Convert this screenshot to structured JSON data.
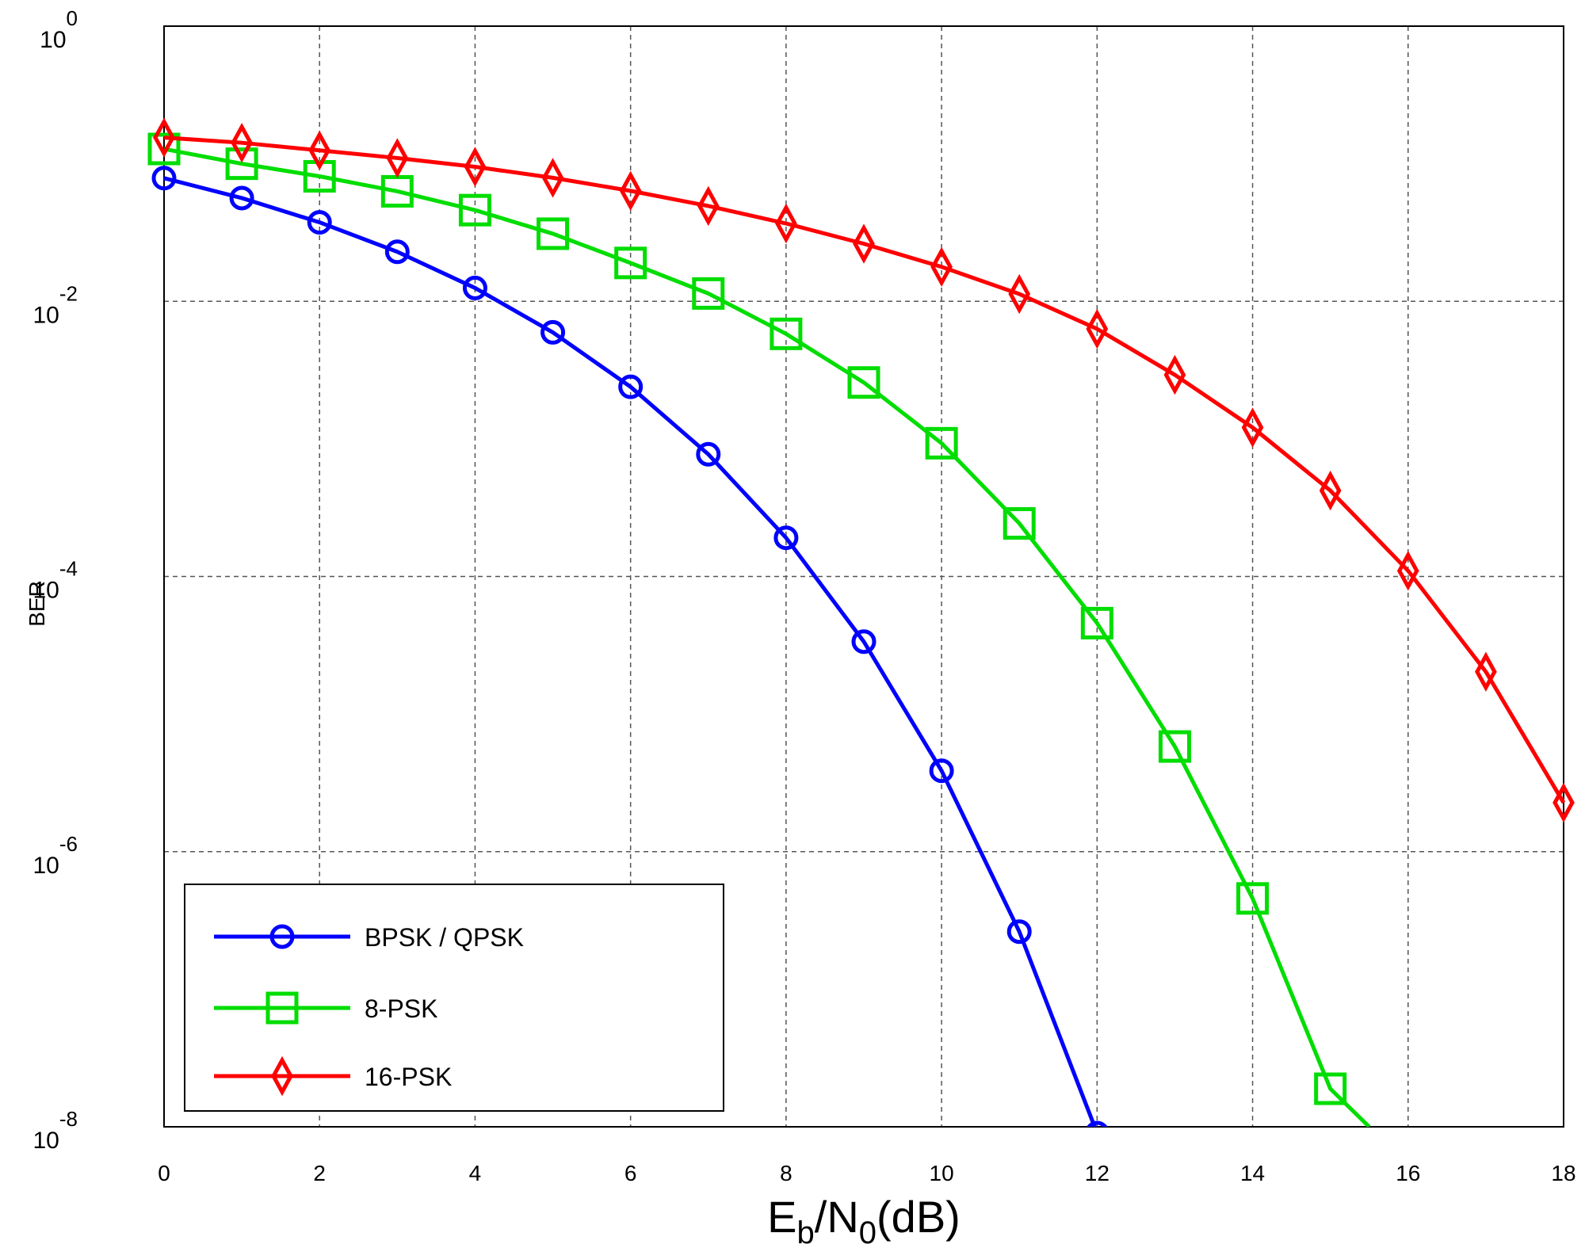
{
  "chart_data": {
    "type": "line",
    "xlabel": {
      "base": "E",
      "sub1": "b",
      "mid": "/N",
      "sub2": "0",
      "suffix": "(dB)"
    },
    "ylabel": "BER",
    "xlim": [
      0,
      18
    ],
    "ylim": [
      1e-08,
      1
    ],
    "yscale": "log",
    "xticks": [
      0,
      2,
      4,
      6,
      8,
      10,
      12,
      14,
      16,
      18
    ],
    "yticks": [
      {
        "base": "10",
        "exp": "0",
        "value": 1
      },
      {
        "base": "10",
        "exp": "-2",
        "value": 0.01
      },
      {
        "base": "10",
        "exp": "-4",
        "value": 0.0001
      },
      {
        "base": "10",
        "exp": "-6",
        "value": 1e-06
      },
      {
        "base": "10",
        "exp": "-8",
        "value": 1e-08
      }
    ],
    "grid": true,
    "legend_position": "bottom-left",
    "series": [
      {
        "name": "BPSK / QPSK",
        "color": "#0000ff",
        "marker": "circle",
        "x": [
          0,
          1,
          2,
          3,
          4,
          5,
          6,
          7,
          8,
          9,
          10,
          11,
          12
        ],
        "y": [
          0.0786,
          0.0563,
          0.0375,
          0.0229,
          0.0125,
          0.00595,
          0.00239,
          0.000773,
          0.000191,
          3.36e-05,
          3.87e-06,
          2.62e-07,
          9e-09
        ]
      },
      {
        "name": "8-PSK",
        "color": "#00dd00",
        "marker": "square",
        "x": [
          0,
          1,
          2,
          3,
          4,
          5,
          6,
          7,
          8,
          9,
          10,
          11,
          12,
          13,
          14,
          15,
          15.5
        ],
        "y": [
          0.128,
          0.1,
          0.081,
          0.063,
          0.046,
          0.031,
          0.019,
          0.0114,
          0.0058,
          0.00257,
          0.00093,
          0.000243,
          4.58e-05,
          5.81e-06,
          4.57e-07,
          1.89e-08,
          1e-08
        ]
      },
      {
        "name": "16-PSK",
        "color": "#ff0000",
        "marker": "diamond",
        "x": [
          0,
          1,
          2,
          3,
          4,
          5,
          6,
          7,
          8,
          9,
          10,
          11,
          12,
          13,
          14,
          15,
          16,
          17,
          18
        ],
        "y": [
          0.155,
          0.142,
          0.125,
          0.11,
          0.095,
          0.079,
          0.0635,
          0.0493,
          0.0368,
          0.0262,
          0.0178,
          0.0113,
          0.0063,
          0.00292,
          0.00121,
          0.000421,
          0.00011,
          2.03e-05,
          2.27e-06
        ]
      }
    ]
  }
}
